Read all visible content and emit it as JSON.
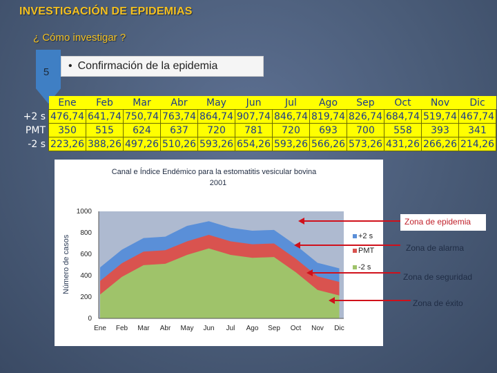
{
  "slide": {
    "title": "INVESTIGACIÓN DE EPIDEMIAS",
    "subtitle": "¿ Cómo investigar ?",
    "step_number": "5",
    "bullet": "Confirmación de la epidemia",
    "colors": {
      "title": "#f4c020",
      "background": "#4a5c78",
      "ribbon": "#3f7fc4",
      "table_fill": "#ffff00",
      "table_text": "#1a3a8a"
    }
  },
  "table": {
    "months": [
      "Ene",
      "Feb",
      "Mar",
      "Abr",
      "May",
      "Jun",
      "Jul",
      "Ago",
      "Sep",
      "Oct",
      "Nov",
      "Dic"
    ],
    "rows": [
      {
        "label": "+2 s",
        "values": [
          "476,74",
          "641,74",
          "750,74",
          "763,74",
          "864,74",
          "907,74",
          "846,74",
          "819,74",
          "826,74",
          "684,74",
          "519,74",
          "467,74"
        ]
      },
      {
        "label": "PMT",
        "values": [
          "350",
          "515",
          "624",
          "637",
          "720",
          "781",
          "720",
          "693",
          "700",
          "558",
          "393",
          "341"
        ]
      },
      {
        "label": "-2 s",
        "values": [
          "223,26",
          "388,26",
          "497,26",
          "510,26",
          "593,26",
          "654,26",
          "593,26",
          "566,26",
          "573,26",
          "431,26",
          "266,26",
          "214,26"
        ]
      }
    ]
  },
  "chart_data": {
    "type": "area",
    "title": "Canal e Índice Endémico para la estomatitis vesicular bovina 2001",
    "title_lines": [
      "Canal e Índice Endémico para la estomatitis vesicular bovina",
      "2001"
    ],
    "ylabel": "Número de casos",
    "xlabel": "",
    "ylim": [
      0,
      1000
    ],
    "yticks": [
      0,
      200,
      400,
      600,
      800,
      1000
    ],
    "grid": false,
    "legend_position": "right",
    "categories": [
      "Ene",
      "Feb",
      "Mar",
      "Abr",
      "May",
      "Jun",
      "Jul",
      "Ago",
      "Sep",
      "Oct",
      "Nov",
      "Dic"
    ],
    "series": [
      {
        "name": "+2 s",
        "color": "#5a8fd8",
        "values": [
          476.74,
          641.74,
          750.74,
          763.74,
          864.74,
          907.74,
          846.74,
          819.74,
          826.74,
          684.74,
          519.74,
          467.74
        ]
      },
      {
        "name": "PMT",
        "color": "#d9534f",
        "values": [
          350,
          515,
          624,
          637,
          720,
          781,
          720,
          693,
          700,
          558,
          393,
          341
        ]
      },
      {
        "name": "-2 s",
        "color": "#9fc36a",
        "values": [
          223.26,
          388.26,
          497.26,
          510.26,
          593.26,
          654.26,
          593.26,
          566.26,
          573.26,
          431.26,
          266.26,
          214.26
        ]
      }
    ],
    "plot_background": "#aebad0"
  },
  "annotations": {
    "epidemia": "Zona de epidemia",
    "alarma": "Zona de alarma",
    "seguridad": "Zona de seguridad",
    "exito": "Zona de éxito",
    "arrow_color": "#d0101a"
  }
}
